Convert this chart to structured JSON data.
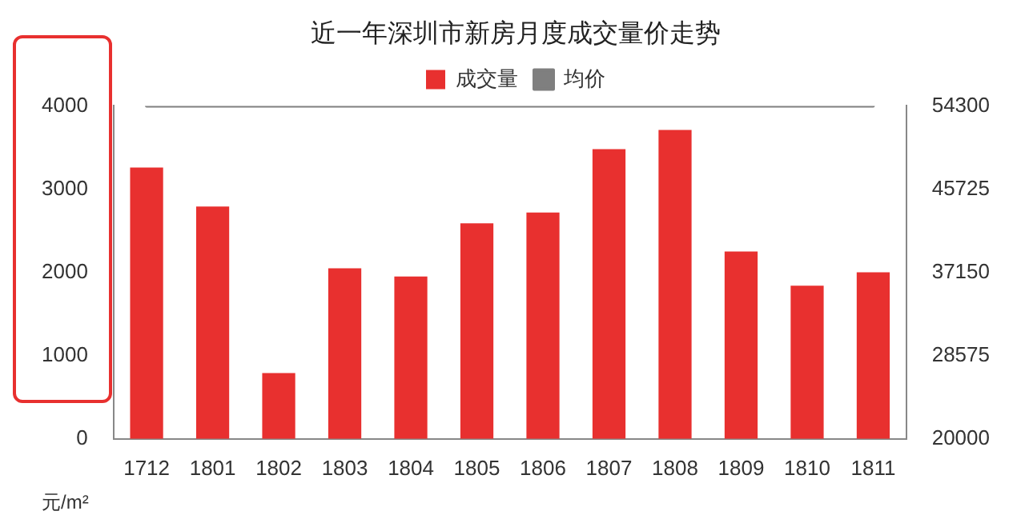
{
  "chart_data": {
    "type": "bar",
    "title": "近一年深圳市新房月度成交量价走势",
    "categories": [
      "1712",
      "1801",
      "1802",
      "1803",
      "1804",
      "1805",
      "1806",
      "1807",
      "1808",
      "1809",
      "1810",
      "1811"
    ],
    "series": [
      {
        "name": "成交量",
        "color": "#e8302f",
        "values": [
          3260,
          2790,
          790,
          2050,
          1950,
          2590,
          2720,
          3480,
          3710,
          2250,
          1840,
          2000
        ]
      },
      {
        "name": "均价",
        "type": "line",
        "axis": "y2",
        "color": "#7f7f7f",
        "values": [
          54300,
          54300,
          54300,
          54300,
          54300,
          54300,
          54300,
          54300,
          54300,
          54300,
          54300,
          54300
        ]
      }
    ],
    "ylim": [
      0,
      4000
    ],
    "yticks": [
      0,
      1000,
      2000,
      3000,
      4000
    ],
    "y2lim": [
      20000,
      54300
    ],
    "y2ticks": [
      20000,
      28575,
      37150,
      45725,
      54300
    ],
    "grid": false,
    "legend": "top",
    "marker": "none",
    "line_style": "solid",
    "annotations": [
      "元/m²"
    ]
  }
}
